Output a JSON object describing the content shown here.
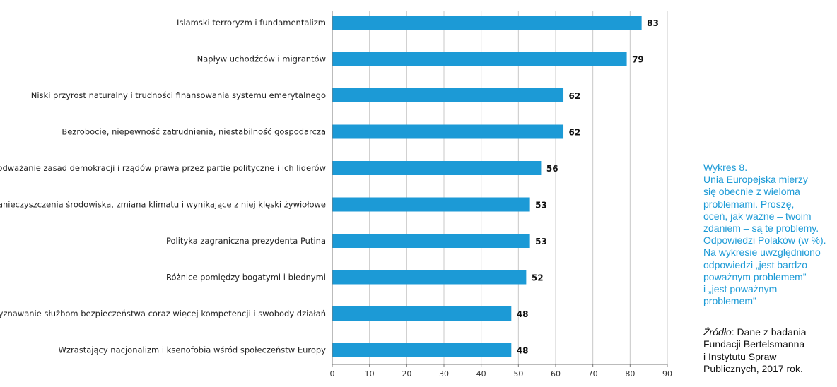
{
  "chart_data": {
    "type": "bar",
    "orientation": "horizontal",
    "categories": [
      "Islamski terroryzm i fundamentalizm",
      "Napływ uchodźców i migrantów",
      "Niski przyrost naturalny i trudności finansowania systemu emerytalnego",
      "Bezrobocie, niepewność zatrudnienia, niestabilność gospodarcza",
      "Podważanie zasad demokracji i rządów prawa przez partie polityczne i ich liderów",
      "Zanieczyszczenia środowiska, zmiana klimatu i wynikające z niej klęski żywiołowe",
      "Polityka zagraniczna prezydenta Putina",
      "Różnice pomiędzy bogatymi i biednymi",
      "Przyznawanie służbom bezpieczeństwa coraz więcej kompetencji i swobody działań",
      "Wzrastający nacjonalizm i ksenofobia wśród społeczeństw Europy"
    ],
    "values": [
      83,
      79,
      62,
      62,
      56,
      53,
      53,
      52,
      48,
      48
    ],
    "xlim": [
      0,
      90
    ],
    "xticks": [
      "0",
      "10",
      "20",
      "30",
      "40",
      "50",
      "60",
      "70",
      "80",
      "90"
    ],
    "grid": true,
    "bar_color": "#1c9ad6",
    "legend": "none"
  },
  "caption": [
    "Wykres 8.",
    "Unia Europejska mierzy",
    "się obecnie z wieloma",
    "problemami. Proszę,",
    "oceń, jak ważne – twoim",
    "zdaniem – są te problemy.",
    "Odpowiedzi Polaków (w %).",
    "Na wykresie uwzględniono",
    "odpowiedzi „jest bardzo",
    "poważnym problemem”",
    "i „jest poważnym",
    "problemem”"
  ],
  "source": {
    "label": "Źródło",
    "line1_rest": ": Dane z badania",
    "line2": "Fundacji Bertelsmanna",
    "line3": "i Instytutu Spraw",
    "line4": "Publicznych, 2017 rok."
  },
  "colors": {
    "caption": "#1c9ad6",
    "bars": "#1c9ad6",
    "grid": "#c8c8c8"
  }
}
